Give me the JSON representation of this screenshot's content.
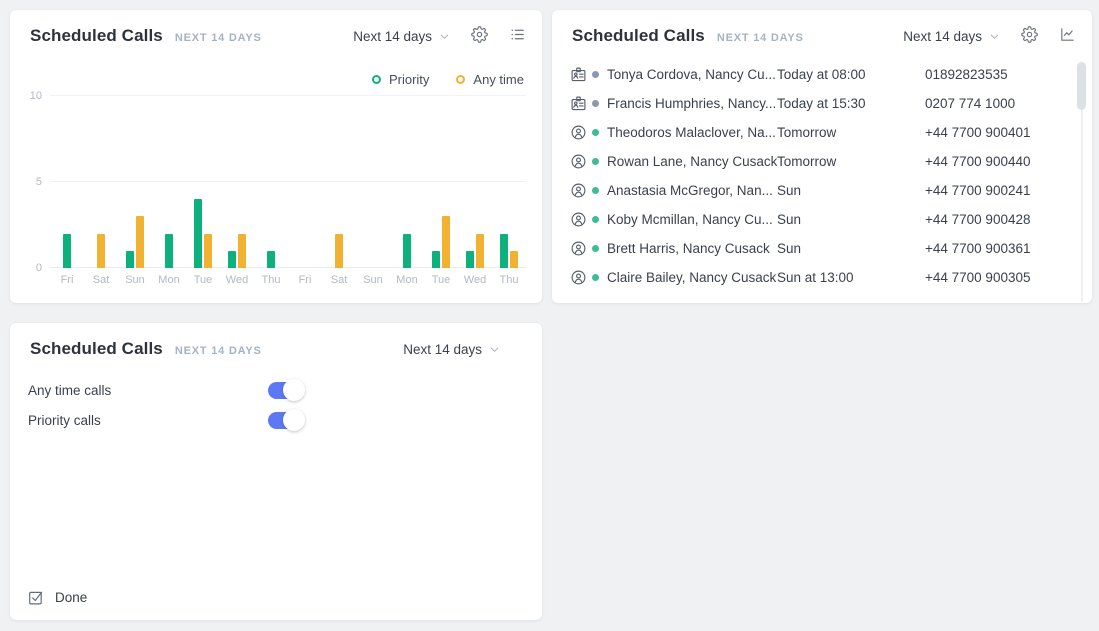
{
  "colors": {
    "priority_green": "#0cb17d",
    "anytime_orange": "#f2b231",
    "toggle_blue": "#5c78f3",
    "dot_gray": "#8c99ac",
    "dot_green": "#3ebd92"
  },
  "panels": {
    "chart": {
      "title": "Scheduled Calls",
      "subtitle": "NEXT 14 DAYS",
      "range_label": "Next 14 days",
      "header_icons": [
        "chevron-down",
        "settings-gear",
        "list-view"
      ]
    },
    "list": {
      "title": "Scheduled Calls",
      "subtitle": "NEXT 14 DAYS",
      "range_label": "Next 14 days",
      "header_icons": [
        "chevron-down",
        "settings-gear",
        "line-chart-view"
      ],
      "rows": [
        {
          "icon": "contact-card",
          "dot": "gray",
          "name": "Tonya Cordova, Nancy Cu...",
          "time": "Today at 08:00",
          "phone": "01892823535"
        },
        {
          "icon": "contact-card",
          "dot": "gray",
          "name": "Francis Humphries, Nancy...",
          "time": "Today at 15:30",
          "phone": "0207 774 1000"
        },
        {
          "icon": "person",
          "dot": "green",
          "name": "Theodoros Malaclover, Na...",
          "time": "Tomorrow",
          "phone": "+44 7700 900401"
        },
        {
          "icon": "person",
          "dot": "green",
          "name": "Rowan Lane, Nancy Cusack",
          "time": "Tomorrow",
          "phone": "+44 7700 900440"
        },
        {
          "icon": "person",
          "dot": "green",
          "name": "Anastasia McGregor, Nan...",
          "time": "Sun",
          "phone": "+44 7700 900241"
        },
        {
          "icon": "person",
          "dot": "green",
          "name": "Koby Mcmillan, Nancy Cu...",
          "time": "Sun",
          "phone": "+44 7700 900428"
        },
        {
          "icon": "person",
          "dot": "green",
          "name": "Brett Harris, Nancy Cusack",
          "time": "Sun",
          "phone": "+44 7700 900361"
        },
        {
          "icon": "person",
          "dot": "green",
          "name": "Claire Bailey, Nancy Cusack",
          "time": "Sun at 13:00",
          "phone": "+44 7700 900305"
        }
      ]
    },
    "settings": {
      "title": "Scheduled Calls",
      "subtitle": "NEXT 14 DAYS",
      "range_label": "Next 14 days",
      "toggles": [
        {
          "label": "Any time calls",
          "state": true
        },
        {
          "label": "Priority calls",
          "state": true
        }
      ],
      "footer": {
        "label": "Done"
      }
    }
  },
  "chart_data": {
    "type": "bar",
    "title": "Scheduled Calls",
    "xlabel": "",
    "ylabel": "",
    "categories": [
      "Fri",
      "Sat",
      "Sun",
      "Mon",
      "Tue",
      "Wed",
      "Thu",
      "Fri",
      "Sat",
      "Sun",
      "Mon",
      "Tue",
      "Wed",
      "Thu"
    ],
    "series": [
      {
        "name": "Priority",
        "color": "#0cb17d",
        "values": [
          2,
          0,
          1,
          2,
          4,
          1,
          1,
          0,
          0,
          0,
          2,
          1,
          1,
          2
        ]
      },
      {
        "name": "Any time",
        "color": "#f2b231",
        "values": [
          0,
          2,
          3,
          0,
          2,
          2,
          0,
          0,
          2,
          0,
          0,
          3,
          2,
          1
        ]
      }
    ],
    "ylim": [
      0,
      10
    ],
    "yticks": [
      0,
      5,
      10
    ],
    "grid": true,
    "legend_position": "top-right"
  }
}
